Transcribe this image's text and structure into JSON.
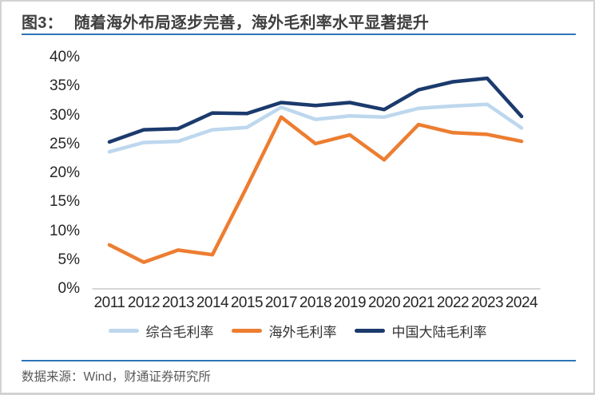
{
  "header": {
    "figure_label": "图3：",
    "title_text": "随着海外布局逐步完善，海外毛利率水平显著提升"
  },
  "footer": {
    "source_text": "数据来源：Wind，财通证券研究所"
  },
  "colors": {
    "accent_rule": "#2E75B6",
    "axis_line": "#C9C9C9",
    "title_text": "#3F3F3F",
    "axis_label": "#262626",
    "footer_text": "#595959"
  },
  "chart_data": {
    "type": "line",
    "title": "随着海外布局逐步完善，海外毛利率水平显著提升",
    "categories": [
      "2011",
      "2012",
      "2013",
      "2014",
      "2015",
      "2017",
      "2018",
      "2019",
      "2020",
      "2021",
      "2022",
      "2023",
      "2024"
    ],
    "series": [
      {
        "name": "综合毛利率",
        "color": "#BDD7EE",
        "values": [
          23.7,
          25.3,
          25.5,
          27.5,
          27.9,
          31.4,
          29.3,
          29.9,
          29.7,
          31.2,
          31.6,
          31.9,
          27.8
        ]
      },
      {
        "name": "海外毛利率",
        "color": "#ED7D31",
        "values": [
          7.6,
          4.6,
          6.7,
          5.9,
          17.6,
          29.7,
          25.1,
          26.6,
          22.3,
          28.4,
          27.0,
          26.7,
          25.5
        ]
      },
      {
        "name": "中国大陆毛利率",
        "color": "#1B3A6D",
        "values": [
          25.4,
          27.5,
          27.7,
          30.4,
          30.3,
          32.2,
          31.7,
          32.2,
          31.0,
          34.4,
          35.8,
          36.4,
          29.8
        ]
      }
    ],
    "xlabel": "",
    "ylabel": "",
    "ylim": [
      0,
      40
    ],
    "yticks": [
      0,
      5,
      10,
      15,
      20,
      25,
      30,
      35,
      40
    ],
    "ytick_suffix": "%",
    "grid": false,
    "legend_position": "bottom",
    "line_width": 4.5
  }
}
